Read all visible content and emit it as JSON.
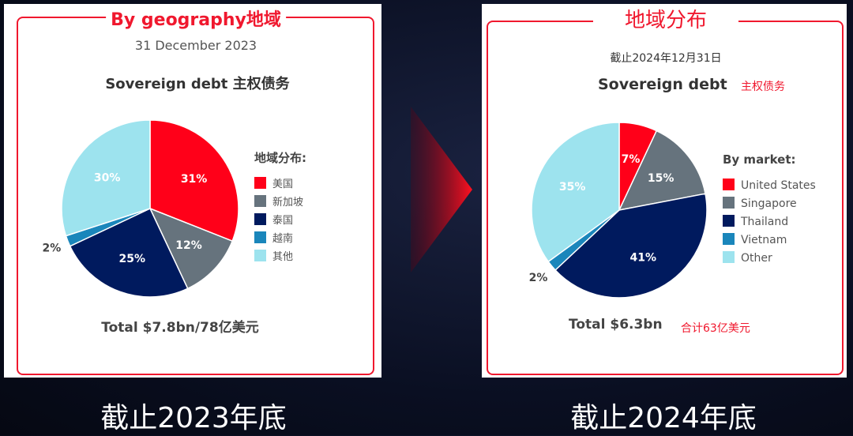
{
  "colors": {
    "us": "#ff0019",
    "singapore": "#66737d",
    "thailand": "#001a5e",
    "vietnam": "#1a86bb",
    "other": "#9de3ee",
    "accent": "#f0182e"
  },
  "chart_data": [
    {
      "type": "pie",
      "banner": "By geography地域",
      "date": "31 December 2023",
      "title": "Sovereign debt 主权债务",
      "title_cn": "",
      "legend_title": "地域分布:",
      "legend_position": "right",
      "categories": [
        "美国",
        "新加坡",
        "泰国",
        "越南",
        "其他"
      ],
      "values": [
        31,
        12,
        25,
        2,
        30
      ],
      "labels": [
        "31%",
        "12%",
        "25%",
        "2%",
        "30%"
      ],
      "total": "Total $7.8bn/78亿美元",
      "total_cn": "",
      "caption": "截止2023年底"
    },
    {
      "type": "pie",
      "banner": "地域分布",
      "date": "截止2024年12月31日",
      "title": "Sovereign debt",
      "title_cn": "主权债务",
      "legend_title": "By market:",
      "legend_position": "right",
      "categories": [
        "United States",
        "Singapore",
        "Thailand",
        "Vietnam",
        "Other"
      ],
      "values": [
        7,
        15,
        41,
        2,
        35
      ],
      "labels": [
        "7%",
        "15%",
        "41%",
        "2%",
        "35%"
      ],
      "total": "Total $6.3bn",
      "total_cn": "合计63亿美元",
      "caption": "截止2024年底"
    }
  ]
}
